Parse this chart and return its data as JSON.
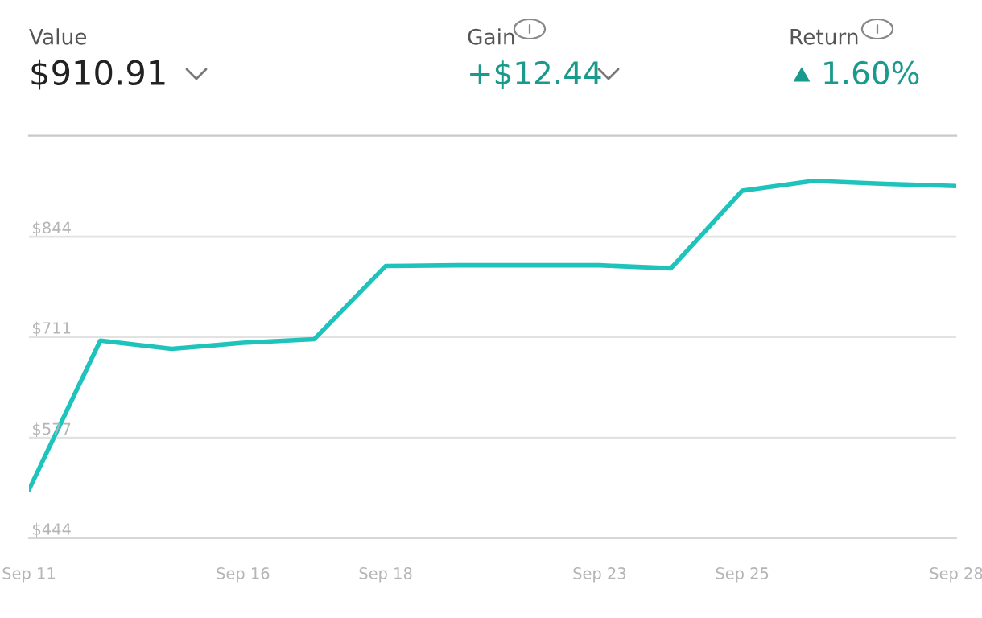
{
  "chart_data": {
    "type": "line",
    "categories": [
      "Sep 11",
      null,
      null,
      "Sep 16",
      null,
      "Sep 18",
      null,
      null,
      "Sep 23",
      null,
      "Sep 25",
      null,
      null,
      "Sep 28"
    ],
    "series": [
      {
        "color": "#1ec4bb",
        "values": [
          508,
          706,
          695,
          703,
          708,
          805,
          806,
          806,
          806,
          802,
          905,
          918,
          914,
          911
        ]
      }
    ],
    "ylim": [
      444,
      978
    ],
    "yticks": [
      {
        "value": 444,
        "label": "$444"
      },
      {
        "value": 577,
        "label": "$577"
      },
      {
        "value": 711,
        "label": "$711"
      },
      {
        "value": 844,
        "label": "$844"
      }
    ],
    "grid": "y",
    "legend": false,
    "marker": "none",
    "line_style": "solid",
    "annotations": [
      "Value",
      "$910.91",
      "Gain",
      "+$12.44",
      "Return",
      "1.60%"
    ]
  }
}
